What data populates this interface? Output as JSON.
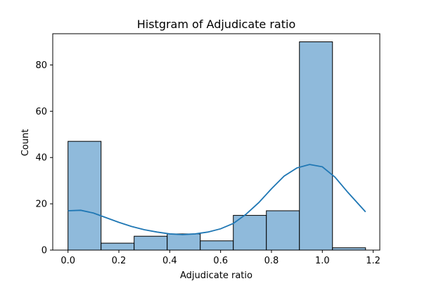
{
  "chart_data": {
    "type": "bar",
    "title": "Histgram of Adjudicate ratio",
    "xlabel": "Adjudicate ratio",
    "ylabel": "Count",
    "xlim": [
      -0.06,
      1.226
    ],
    "ylim": [
      0,
      93.5
    ],
    "xticks": [
      0.0,
      0.2,
      0.4,
      0.6,
      0.8,
      1.0,
      1.2
    ],
    "xtick_labels": [
      "0.0",
      "0.2",
      "0.4",
      "0.6",
      "0.8",
      "1.0",
      "1.2"
    ],
    "yticks": [
      0,
      20,
      40,
      60,
      80
    ],
    "ytick_labels": [
      "0",
      "20",
      "40",
      "60",
      "80"
    ],
    "bins": [
      {
        "start": 0.0,
        "end": 0.13,
        "count": 47
      },
      {
        "start": 0.13,
        "end": 0.26,
        "count": 3
      },
      {
        "start": 0.26,
        "end": 0.39,
        "count": 6
      },
      {
        "start": 0.39,
        "end": 0.52,
        "count": 7
      },
      {
        "start": 0.52,
        "end": 0.65,
        "count": 4
      },
      {
        "start": 0.65,
        "end": 0.78,
        "count": 15
      },
      {
        "start": 0.78,
        "end": 0.91,
        "count": 17
      },
      {
        "start": 0.91,
        "end": 1.04,
        "count": 90
      },
      {
        "start": 1.04,
        "end": 1.17,
        "count": 1
      }
    ],
    "kde": {
      "x": [
        0.0,
        0.05,
        0.1,
        0.15,
        0.2,
        0.25,
        0.3,
        0.35,
        0.4,
        0.45,
        0.5,
        0.55,
        0.6,
        0.65,
        0.7,
        0.75,
        0.8,
        0.85,
        0.9,
        0.95,
        1.0,
        1.05,
        1.1,
        1.17
      ],
      "y": [
        17,
        17.2,
        16,
        14,
        12,
        10.2,
        8.8,
        7.8,
        7.0,
        6.7,
        7.0,
        7.8,
        9.2,
        11.5,
        15.5,
        20.5,
        26.5,
        32,
        35.5,
        37,
        36,
        31.5,
        25,
        16.5
      ]
    },
    "grid": false,
    "colors": {
      "bar_fill": "#8fbadb",
      "bar_edge": "#000000",
      "kde_line": "#1f77b4",
      "axis": "#000000"
    }
  }
}
